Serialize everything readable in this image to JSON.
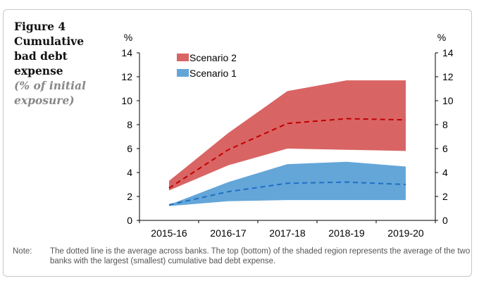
{
  "title": "Figure 4",
  "title_lines": [
    "Cumulative",
    "bad debt",
    "expense"
  ],
  "subtitle": "(% of initial exposure)",
  "note_label": "Note:",
  "note_text": "The dotted line is the average across banks. The top (bottom) of the shaded region represents the average of the two banks with the largest (smallest) cumulative bad debt expense.",
  "chart_data": {
    "type": "area",
    "categories": [
      "2015-16",
      "2016-17",
      "2017-18",
      "2018-19",
      "2019-20"
    ],
    "ylabel_left": "%",
    "ylabel_right": "%",
    "ylim": [
      0,
      14
    ],
    "yticks": [
      0,
      2,
      4,
      6,
      8,
      10,
      12,
      14
    ],
    "grid": false,
    "legend_placement": "top-left",
    "series": [
      {
        "name": "Scenario 2",
        "color": "#d96464",
        "line_color": "#c00000",
        "upper": [
          3.3,
          7.3,
          10.8,
          11.7,
          11.7
        ],
        "lower": [
          2.5,
          4.6,
          6.0,
          5.9,
          5.8
        ],
        "average": [
          2.7,
          5.9,
          8.1,
          8.5,
          8.4
        ]
      },
      {
        "name": "Scenario 1",
        "color": "#64a6d8",
        "line_color": "#1f6fc4",
        "upper": [
          1.3,
          3.2,
          4.7,
          4.9,
          4.5
        ],
        "lower": [
          1.2,
          1.6,
          1.7,
          1.7,
          1.7
        ],
        "average": [
          1.3,
          2.4,
          3.1,
          3.2,
          3.0
        ]
      }
    ]
  }
}
